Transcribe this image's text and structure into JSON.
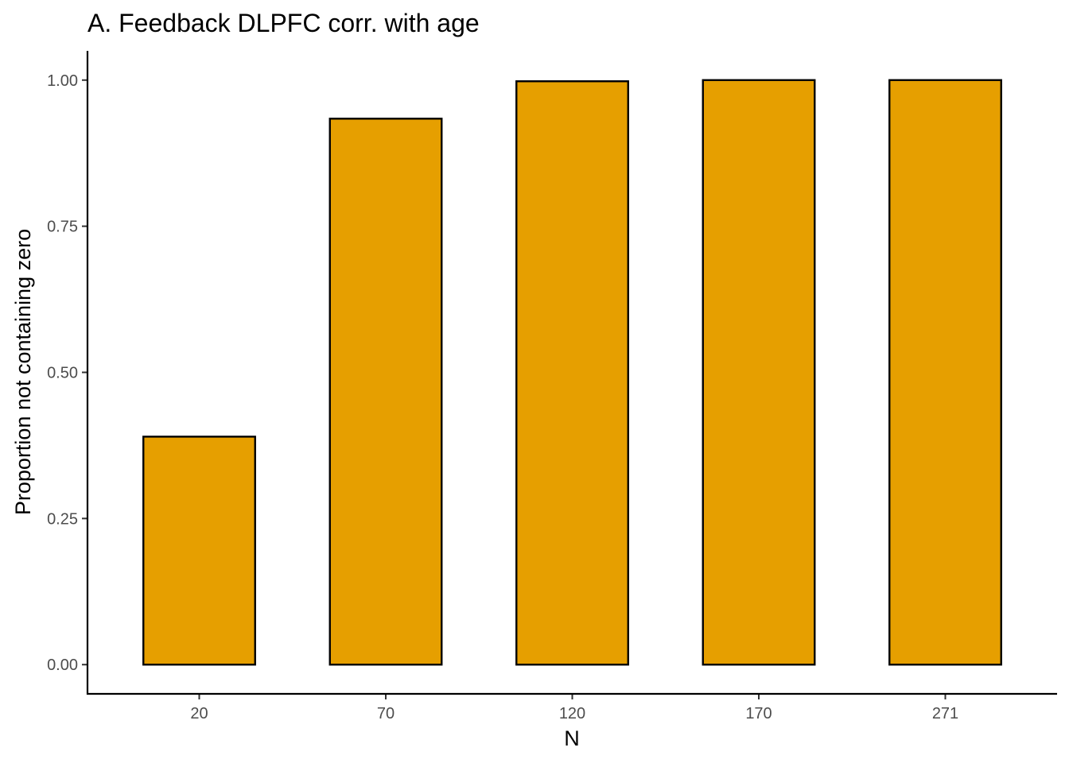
{
  "chart_data": {
    "type": "bar",
    "title": "A. Feedback DLPFC corr. with age",
    "xlabel": "N",
    "ylabel": "Proportion not containing zero",
    "categories": [
      "20",
      "70",
      "120",
      "170",
      "271"
    ],
    "values": [
      0.39,
      0.934,
      0.998,
      1.0,
      1.0
    ],
    "ylim": [
      -0.05,
      1.05
    ],
    "yticks": [
      0,
      0.25,
      0.5,
      0.75,
      1.0
    ],
    "ytick_labels": [
      "0.00",
      "0.25",
      "0.50",
      "0.75",
      "1.00"
    ],
    "bar_color": "#E69F00",
    "bar_outline_color": "#000000",
    "grid": false,
    "legend": "none"
  }
}
